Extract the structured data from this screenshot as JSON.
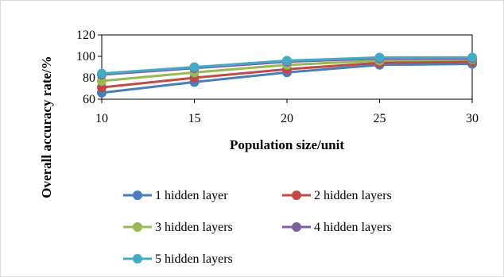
{
  "chart_data": {
    "type": "line",
    "title": "",
    "xlabel": "Population size/unit",
    "ylabel": "Overall accuracy rate/%",
    "x": [
      10,
      15,
      20,
      25,
      30
    ],
    "xlim": [
      10,
      30
    ],
    "ylim": [
      60,
      120
    ],
    "yticks": [
      60,
      80,
      100,
      120
    ],
    "grid": false,
    "legend_position": "bottom",
    "series": [
      {
        "name": "1 hidden layer",
        "color": "#4a7ebb",
        "values": [
          66,
          76,
          85,
          92,
          93
        ]
      },
      {
        "name": "2 hidden layers",
        "color": "#be4b48",
        "values": [
          71,
          80,
          88,
          94,
          95
        ]
      },
      {
        "name": "3 hidden layers",
        "color": "#98b954",
        "values": [
          77,
          85,
          92,
          96,
          97
        ]
      },
      {
        "name": "4 hidden layers",
        "color": "#7d60a0",
        "values": [
          83,
          89,
          95,
          98,
          98
        ]
      },
      {
        "name": "5 hidden layers",
        "color": "#46aac5",
        "values": [
          84,
          90,
          96,
          99,
          99
        ]
      }
    ]
  }
}
